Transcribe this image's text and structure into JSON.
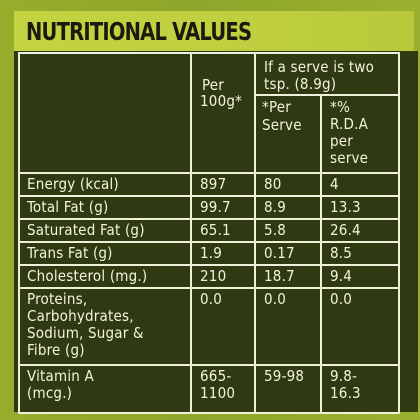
{
  "title": "NUTRITIONAL VALUES",
  "headers": {
    "per100": [
      "Per",
      "100g*"
    ],
    "serve_group": [
      "If a serve is two",
      "tsp. (8.9g)"
    ],
    "per_serve": [
      "*Per",
      "Serve"
    ],
    "rda": [
      "*%",
      "R.D.A",
      "per",
      "serve"
    ]
  },
  "rows": [
    {
      "label": [
        "Energy (kcal)"
      ],
      "per100": [
        "897"
      ],
      "per_serve": [
        "80"
      ],
      "rda": [
        "4"
      ]
    },
    {
      "label": [
        "Total Fat (g)"
      ],
      "per100": [
        "99.7"
      ],
      "per_serve": [
        "8.9"
      ],
      "rda": [
        "13.3"
      ]
    },
    {
      "label": [
        "Saturated Fat (g)"
      ],
      "per100": [
        "65.1"
      ],
      "per_serve": [
        "5.8"
      ],
      "rda": [
        "26.4"
      ]
    },
    {
      "label": [
        "Trans Fat (g)"
      ],
      "per100": [
        "1.9"
      ],
      "per_serve": [
        "0.17"
      ],
      "rda": [
        "8.5"
      ]
    },
    {
      "label": [
        "Cholesterol (mg.)"
      ],
      "per100": [
        "210"
      ],
      "per_serve": [
        "18.7"
      ],
      "rda": [
        "9.4"
      ]
    },
    {
      "label": [
        "Proteins,",
        "Carbohydrates,",
        "Sodium, Sugar &",
        "Fibre (g)"
      ],
      "per100": [
        "0.0"
      ],
      "per_serve": [
        "0.0"
      ],
      "rda": [
        "0.0"
      ]
    },
    {
      "label": [
        "Vitamin A",
        "(mcg.)"
      ],
      "per100": [
        "665-",
        "1100"
      ],
      "per_serve": [
        "59-98"
      ],
      "rda": [
        "9.8-",
        "16.3"
      ]
    }
  ]
}
